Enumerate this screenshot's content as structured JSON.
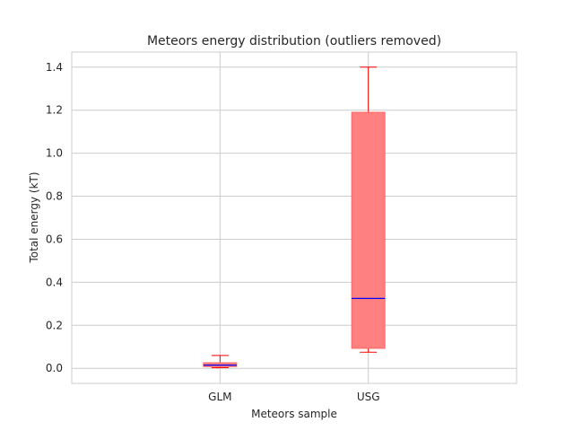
{
  "chart_data": {
    "type": "box",
    "title": "Meteors energy distribution (outliers removed)",
    "xlabel": "Meteors sample",
    "ylabel": "Total energy (kT)",
    "categories": [
      "GLM",
      "USG"
    ],
    "boxes": [
      {
        "name": "GLM",
        "whisker_low": 0.003,
        "q1": 0.008,
        "median": 0.015,
        "q3": 0.026,
        "whisker_high": 0.06
      },
      {
        "name": "USG",
        "whisker_low": 0.075,
        "q1": 0.093,
        "median": 0.325,
        "q3": 1.19,
        "whisker_high": 1.4
      }
    ],
    "ylim": [
      -0.07,
      1.47
    ],
    "yticks": [
      "0.0",
      "0.2",
      "0.4",
      "0.6",
      "0.8",
      "1.0",
      "1.2",
      "1.4"
    ],
    "grid": true,
    "colors": {
      "box_fill": "#ff8080",
      "box_edge": "#ff6666",
      "whisker": "#ff0000",
      "median": "#0000ff",
      "grid": "#cccccc",
      "spine": "#cccccc"
    }
  }
}
